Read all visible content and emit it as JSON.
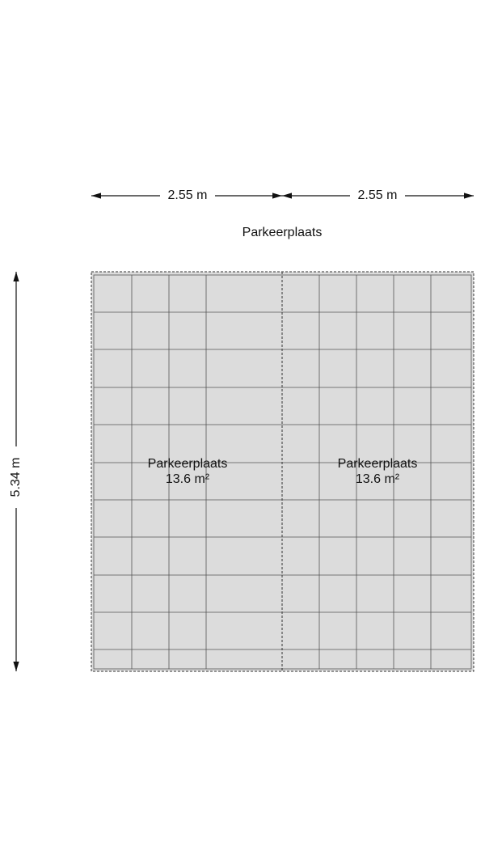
{
  "title": "Parkeerplaats",
  "dimensions": [
    {
      "label": "2.55 m"
    },
    {
      "label": "2.55 m"
    },
    {
      "label": "5.34 m"
    }
  ],
  "rooms": [
    {
      "name": "Parkeerplaats",
      "area": "13.6 m²"
    },
    {
      "name": "Parkeerplaats",
      "area": "13.6 m²"
    }
  ]
}
